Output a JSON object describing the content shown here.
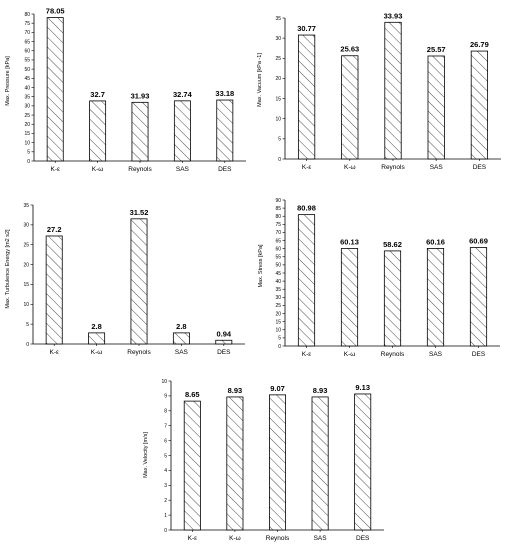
{
  "chart_data": [
    {
      "type": "bar",
      "categories": [
        "K-ε",
        "K-ω",
        "Reynols",
        "SAS",
        "DES"
      ],
      "values": [
        78.05,
        32.7,
        31.93,
        32.74,
        33.18
      ],
      "value_labels": [
        "78.05",
        "32.7",
        "31.93",
        "32.74",
        "33.18"
      ],
      "ylabel": "Max. Pressure [kPa]",
      "ylim": [
        0,
        80
      ],
      "yticks": [
        0,
        5,
        10,
        15,
        20,
        25,
        30,
        35,
        40,
        45,
        50,
        55,
        60,
        65,
        70,
        75,
        80
      ],
      "grid": false,
      "fill": "hatched"
    },
    {
      "type": "bar",
      "categories": [
        "K-ε",
        "K-ω",
        "Reynols",
        "SAS",
        "DES"
      ],
      "values": [
        30.77,
        25.63,
        33.93,
        25.57,
        26.79
      ],
      "value_labels": [
        "30.77",
        "25.63",
        "33.93",
        "25.57",
        "26.79"
      ],
      "ylabel": "Max. Vacuum [kPa -1]",
      "ylim": [
        0,
        35
      ],
      "yticks": [
        0,
        5,
        10,
        15,
        20,
        25,
        30,
        35
      ],
      "grid": false,
      "fill": "hatched"
    },
    {
      "type": "bar",
      "categories": [
        "K-ε",
        "K-ω",
        "Reynols",
        "SAS",
        "DES"
      ],
      "values": [
        27.2,
        2.8,
        31.52,
        2.8,
        0.94
      ],
      "value_labels": [
        "27.2",
        "2.8",
        "31.52",
        "2.8",
        "0.94"
      ],
      "ylabel": "Max. Turbulence Energy [m2 s2]",
      "ylim": [
        0,
        35
      ],
      "yticks": [
        0,
        5,
        10,
        15,
        20,
        25,
        30,
        35
      ],
      "grid": false,
      "fill": "hatched"
    },
    {
      "type": "bar",
      "categories": [
        "K-ε",
        "K-ω",
        "Reynols",
        "SAS",
        "DES"
      ],
      "values": [
        80.98,
        60.13,
        58.62,
        60.16,
        60.69
      ],
      "value_labels": [
        "80.98",
        "60.13",
        "58.62",
        "60.16",
        "60.69"
      ],
      "ylabel": "Max. Stress [kPa]",
      "ylim": [
        0,
        90
      ],
      "yticks": [
        0,
        5,
        10,
        15,
        20,
        25,
        30,
        35,
        40,
        45,
        50,
        55,
        60,
        65,
        70,
        75,
        80,
        85,
        90
      ],
      "grid": false,
      "fill": "hatched"
    },
    {
      "type": "bar",
      "categories": [
        "K-ε",
        "K-ω",
        "Reynols",
        "SAS",
        "DES"
      ],
      "values": [
        8.65,
        8.93,
        9.07,
        8.93,
        9.13
      ],
      "value_labels": [
        "8.65",
        "8.93",
        "9.07",
        "8.93",
        "9.13"
      ],
      "ylabel": "Max. Velocity [m/s]",
      "ylim": [
        0,
        10
      ],
      "yticks": [
        0,
        1,
        2,
        3,
        4,
        5,
        6,
        7,
        8,
        9,
        10
      ],
      "grid": false,
      "fill": "hatched"
    }
  ]
}
